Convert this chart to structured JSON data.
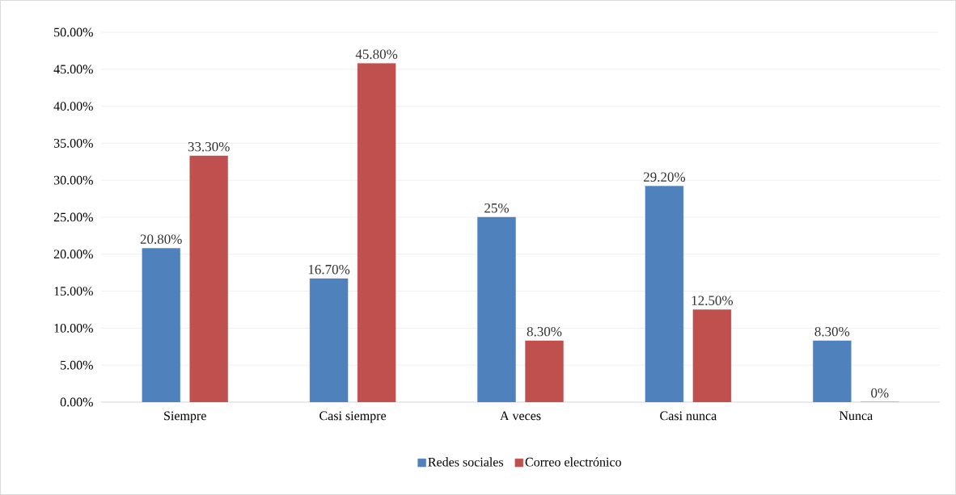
{
  "chart_data": {
    "type": "bar",
    "categories": [
      "Siempre",
      "Casi siempre",
      "A veces",
      "Casi nunca",
      "Nunca"
    ],
    "series": [
      {
        "name": "Redes sociales",
        "color": "#4f81bd",
        "values": [
          20.8,
          16.7,
          25,
          29.2,
          8.3
        ],
        "value_labels": [
          "20.80%",
          "16.70%",
          "25%",
          "29.20%",
          "8.30%"
        ]
      },
      {
        "name": "Correo electrónico",
        "color": "#c0504d",
        "values": [
          33.3,
          45.8,
          8.3,
          12.5,
          0
        ],
        "value_labels": [
          "33.30%",
          "45.80%",
          "8.30%",
          "12.50%",
          "0%"
        ]
      }
    ],
    "ylim": [
      0,
      50
    ],
    "yticks": [
      {
        "value": 0,
        "label": "0.00%"
      },
      {
        "value": 5,
        "label": "5.00%"
      },
      {
        "value": 10,
        "label": "10.00%"
      },
      {
        "value": 15,
        "label": "15.00%"
      },
      {
        "value": 20,
        "label": "20.00%"
      },
      {
        "value": 25,
        "label": "25.00%"
      },
      {
        "value": 30,
        "label": "30.00%"
      },
      {
        "value": 35,
        "label": "35.00%"
      },
      {
        "value": 40,
        "label": "40.00%"
      },
      {
        "value": 45,
        "label": "45.00%"
      },
      {
        "value": 50,
        "label": "50.00%"
      }
    ],
    "grid": "y",
    "legend": "bottom"
  }
}
